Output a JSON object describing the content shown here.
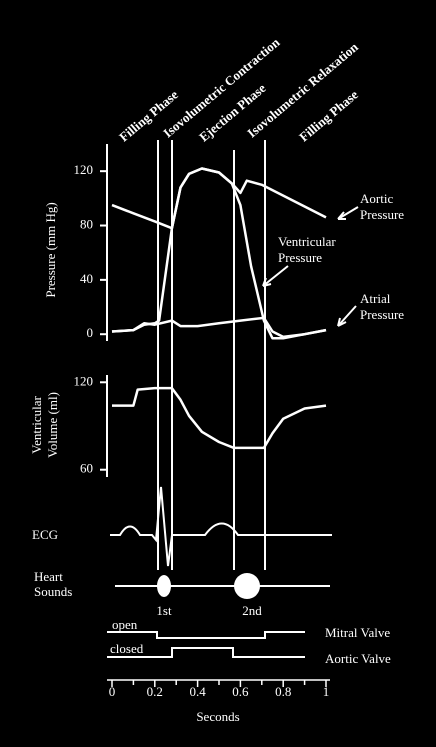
{
  "phases": [
    "Filling Phase",
    "Isovolumetric Contraction",
    "Ejection Phase",
    "Isovolumetric Relaxation",
    "Filling Phase"
  ],
  "chart_data": [
    {
      "type": "line",
      "ylabel": "Pressure (mm Hg)",
      "xlim": [
        0,
        1
      ],
      "ylim": [
        -5,
        140
      ],
      "yticks": [
        0,
        40,
        80,
        120
      ],
      "series": [
        {
          "name": "Aortic Pressure",
          "color": "#ffffff",
          "x": [
            0,
            0.1,
            0.2,
            0.28,
            0.32,
            0.36,
            0.42,
            0.5,
            0.56,
            0.6,
            0.63,
            0.7,
            0.8,
            0.9,
            1.0
          ],
          "values": [
            95,
            89,
            83,
            78,
            108,
            118,
            122,
            119,
            111,
            104,
            113,
            110,
            102,
            94,
            86
          ]
        },
        {
          "name": "Ventricular Pressure",
          "color": "#ffffff",
          "x": [
            0,
            0.1,
            0.15,
            0.2,
            0.22,
            0.28,
            0.32,
            0.36,
            0.42,
            0.5,
            0.56,
            0.6,
            0.65,
            0.71,
            0.75,
            0.8,
            0.9,
            1.0
          ],
          "values": [
            2,
            3,
            7,
            8,
            10,
            78,
            108,
            118,
            122,
            119,
            111,
            95,
            50,
            10,
            -3,
            -3,
            0,
            3
          ]
        },
        {
          "name": "Atrial Pressure",
          "color": "#ffffff",
          "x": [
            0,
            0.1,
            0.15,
            0.2,
            0.28,
            0.32,
            0.4,
            0.5,
            0.6,
            0.71,
            0.75,
            0.8,
            0.9,
            1.0
          ],
          "values": [
            2,
            3,
            8,
            7,
            10,
            6,
            6,
            8,
            10,
            12,
            2,
            -2,
            0,
            3
          ]
        }
      ],
      "annotations": [
        [
          "Aortic",
          "Pressure"
        ],
        [
          "Ventricular",
          "Pressure"
        ],
        [
          "Atrial",
          "Pressure"
        ]
      ]
    },
    {
      "type": "line",
      "ylabel": [
        "Ventricular",
        "Volume (ml)"
      ],
      "xlabel": "Seconds",
      "xlim": [
        0,
        1
      ],
      "ylim": [
        55,
        125
      ],
      "yticks": [
        60,
        120
      ],
      "xticks": [
        0,
        0.2,
        0.4,
        0.6,
        0.8,
        1
      ],
      "series": [
        {
          "name": "Ventricular Volume",
          "color": "#ffffff",
          "x": [
            0,
            0.1,
            0.12,
            0.2,
            0.28,
            0.32,
            0.36,
            0.42,
            0.5,
            0.57,
            0.6,
            0.71,
            0.75,
            0.8,
            0.9,
            1.0
          ],
          "values": [
            104,
            104,
            115,
            116,
            116,
            108,
            97,
            86,
            79,
            75,
            75,
            75,
            85,
            95,
            102,
            104
          ]
        }
      ]
    }
  ],
  "ecg_label": "ECG",
  "heart_sounds": {
    "label": [
      "Heart",
      "Sounds"
    ],
    "first": "1st",
    "second": "2nd"
  },
  "valves": {
    "open": "open",
    "closed": "closed",
    "mitral": "Mitral Valve",
    "aortic": "Aortic Valve"
  }
}
